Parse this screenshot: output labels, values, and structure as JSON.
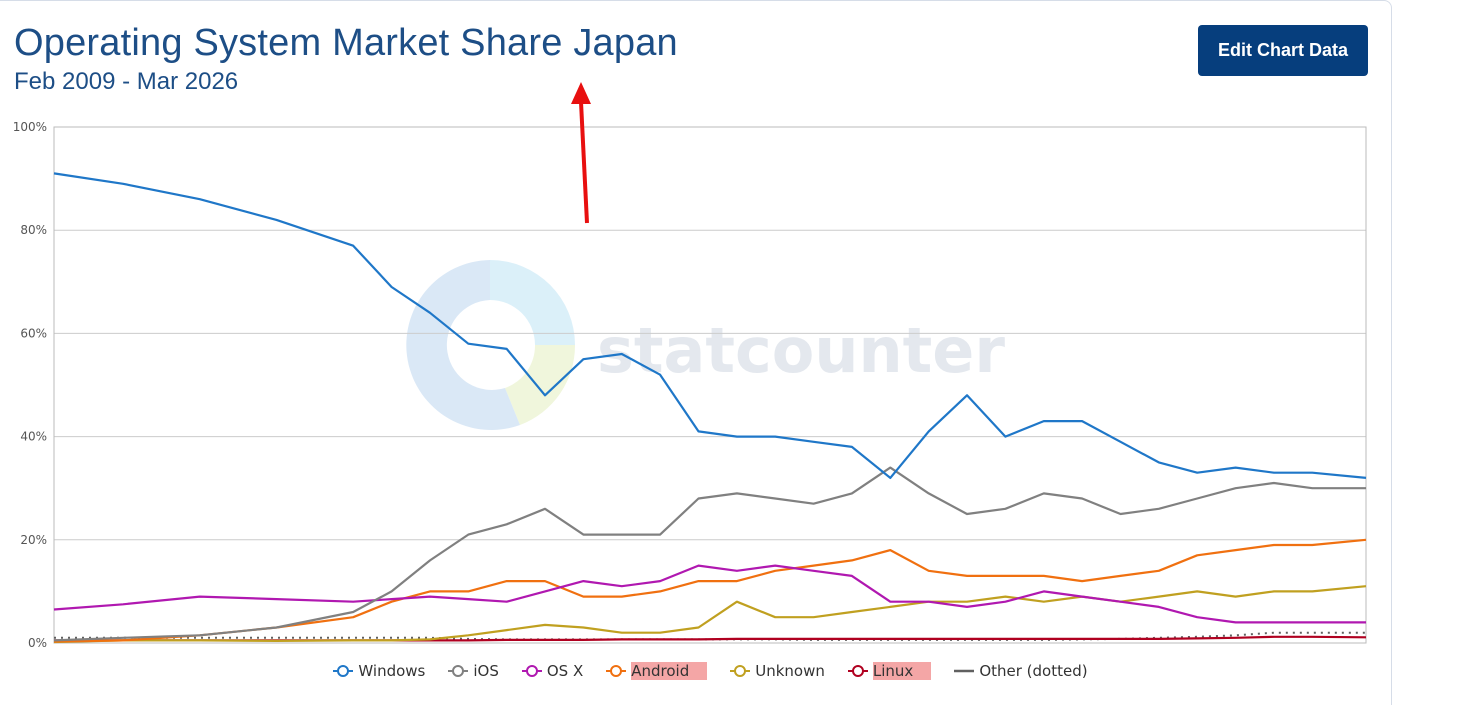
{
  "header": {
    "title": "Operating System Market Share Japan",
    "subtitle": "Feb 2009 - Mar 2026",
    "edit_button_label": "Edit Chart Data"
  },
  "watermark": "statcounter",
  "colors": {
    "Windows": "#1f77c8",
    "iOS": "#808080",
    "OS X": "#b018b0",
    "Android": "#f07010",
    "Unknown": "#c0a020",
    "Linux": "#b00020",
    "Other (dotted)": "#606060",
    "grid": "#cccccc",
    "annotation_arrow": "#e81010"
  },
  "chart_data": {
    "type": "line",
    "title": "Operating System Market Share Japan",
    "subtitle": "Feb 2009 - Mar 2026",
    "x_range": [
      "2009-02",
      "2026-03"
    ],
    "ylim": [
      0,
      100
    ],
    "yticks": [
      "0%",
      "20%",
      "40%",
      "60%",
      "80%",
      "100%"
    ],
    "grid": true,
    "legend_position": "bottom",
    "x": [
      2009.1,
      2010.0,
      2011.0,
      2012.0,
      2013.0,
      2013.5,
      2014.0,
      2014.5,
      2015.0,
      2015.5,
      2016.0,
      2016.5,
      2017.0,
      2017.5,
      2018.0,
      2018.5,
      2019.0,
      2019.5,
      2020.0,
      2020.5,
      2021.0,
      2021.5,
      2022.0,
      2022.5,
      2023.0,
      2023.5,
      2024.0,
      2024.5,
      2025.0,
      2025.5,
      2026.2
    ],
    "series": [
      {
        "name": "Windows",
        "values": [
          91,
          89,
          86,
          82,
          77,
          69,
          64,
          58,
          57,
          48,
          55,
          56,
          52,
          41,
          40,
          40,
          39,
          38,
          32,
          41,
          48,
          40,
          43,
          43,
          39,
          35,
          33,
          34,
          33,
          33,
          32
        ]
      },
      {
        "name": "iOS",
        "values": [
          0.5,
          1,
          1.5,
          3,
          6,
          10,
          16,
          21,
          23,
          26,
          21,
          21,
          21,
          28,
          29,
          28,
          27,
          29,
          34,
          29,
          25,
          26,
          29,
          28,
          25,
          26,
          28,
          30,
          31,
          30,
          30
        ]
      },
      {
        "name": "OS X",
        "values": [
          6.5,
          7.5,
          9,
          8.5,
          8,
          8.5,
          9,
          8.5,
          8,
          10,
          12,
          11,
          12,
          15,
          14,
          15,
          14,
          13,
          8,
          8,
          7,
          8,
          10,
          9,
          8,
          7,
          5,
          4,
          4,
          4,
          4
        ]
      },
      {
        "name": "Android",
        "values": [
          0.3,
          0.5,
          1.5,
          3,
          5,
          8,
          10,
          10,
          12,
          12,
          9,
          9,
          10,
          12,
          12,
          14,
          15,
          16,
          18,
          14,
          13,
          13,
          13,
          12,
          13,
          14,
          17,
          18,
          19,
          19,
          20
        ]
      },
      {
        "name": "Unknown",
        "values": [
          0.2,
          0.5,
          0.5,
          0.4,
          0.5,
          0.5,
          0.7,
          1.5,
          2.5,
          3.5,
          3,
          2,
          2,
          3,
          8,
          5,
          5,
          6,
          7,
          8,
          8,
          9,
          8,
          9,
          8,
          9,
          10,
          9,
          10,
          10,
          11
        ]
      },
      {
        "name": "Linux",
        "values": [
          0.5,
          0.5,
          0.5,
          0.5,
          0.5,
          0.5,
          0.5,
          0.5,
          0.6,
          0.6,
          0.6,
          0.7,
          0.7,
          0.7,
          0.8,
          0.8,
          0.8,
          0.8,
          0.8,
          0.8,
          0.8,
          0.8,
          0.8,
          0.8,
          0.8,
          0.8,
          0.9,
          1,
          1.2,
          1.2,
          1.1
        ]
      },
      {
        "name": "Other (dotted)",
        "values": [
          1,
          1,
          1,
          1,
          1,
          1,
          1,
          0.8,
          0.7,
          0.7,
          0.7,
          0.7,
          0.7,
          0.7,
          0.7,
          0.7,
          0.6,
          0.6,
          0.6,
          0.6,
          0.6,
          0.6,
          0.6,
          0.7,
          0.8,
          1,
          1.2,
          1.5,
          2,
          2,
          2
        ]
      }
    ]
  },
  "legend": [
    {
      "label": "Windows",
      "highlighted": false
    },
    {
      "label": "iOS",
      "highlighted": false
    },
    {
      "label": "OS X",
      "highlighted": false
    },
    {
      "label": "Android",
      "highlighted": true
    },
    {
      "label": "Unknown",
      "highlighted": false
    },
    {
      "label": "Linux",
      "highlighted": true
    },
    {
      "label": "Other (dotted)",
      "highlighted": false
    }
  ]
}
